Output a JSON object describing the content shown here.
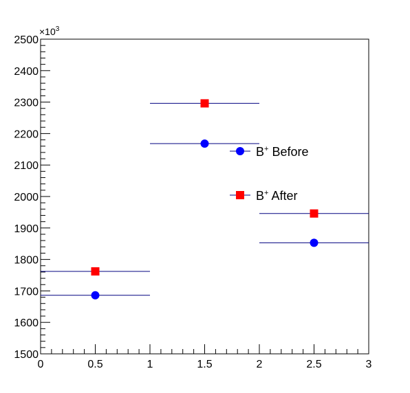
{
  "chart_data": {
    "type": "scatter",
    "title": "",
    "xlabel": "",
    "ylabel": "",
    "xlim": [
      0,
      3
    ],
    "ylim": [
      1500,
      2500
    ],
    "y_multiplier_label": "×10",
    "y_multiplier_exp": "3",
    "x_ticks": [
      0,
      0.5,
      1,
      1.5,
      2,
      2.5,
      3
    ],
    "x_tick_labels": [
      "0",
      "0.5",
      "1",
      "1.5",
      "2",
      "2.5",
      "3"
    ],
    "y_ticks": [
      1500,
      1600,
      1700,
      1800,
      1900,
      2000,
      2100,
      2200,
      2300,
      2400,
      2500
    ],
    "y_tick_labels": [
      "1500",
      "1600",
      "1700",
      "1800",
      "1900",
      "2000",
      "2100",
      "2200",
      "2300",
      "2400",
      "2500"
    ],
    "grid": false,
    "legend_position": "center-right",
    "series": [
      {
        "name": "B+ Before",
        "label_base": "B",
        "label_sup": "+",
        "label_rest": " Before",
        "marker": "circle",
        "color": "#0000ff",
        "errbar_color": "#000080",
        "points": [
          {
            "x": 0.5,
            "y": 1686,
            "xerr": 0.5
          },
          {
            "x": 1.5,
            "y": 2168,
            "xerr": 0.5
          },
          {
            "x": 2.5,
            "y": 1853,
            "xerr": 0.5
          }
        ]
      },
      {
        "name": "B+ After",
        "label_base": "B",
        "label_sup": "+",
        "label_rest": " After",
        "marker": "square",
        "color": "#ff0000",
        "errbar_color": "#000080",
        "points": [
          {
            "x": 0.5,
            "y": 1762,
            "xerr": 0.5
          },
          {
            "x": 1.5,
            "y": 2296,
            "xerr": 0.5
          },
          {
            "x": 2.5,
            "y": 1946,
            "xerr": 0.5
          }
        ]
      }
    ]
  }
}
